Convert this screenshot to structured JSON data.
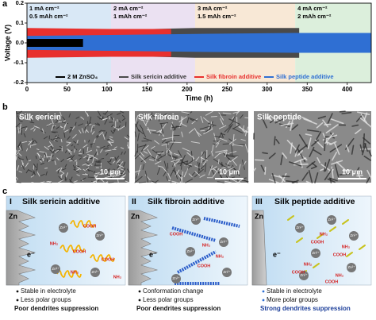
{
  "chart_data": {
    "type": "band",
    "panel_label": "a",
    "x_label": "Time (h)",
    "y_label": "Voltage (V)",
    "xlim": [
      0,
      430
    ],
    "xticks": [
      0,
      50,
      100,
      150,
      200,
      250,
      300,
      350,
      400
    ],
    "ylim": [
      -0.2,
      0.2
    ],
    "yticks": [
      0.2,
      0.1,
      {
        "value": 0,
        "label": "0.0"
      },
      -0.1,
      -0.2
    ],
    "regions": [
      {
        "x": [
          0,
          105
        ],
        "color": "#d9e8f6",
        "lines": [
          "1 mA cm⁻²",
          "0.5 mAh cm⁻²"
        ]
      },
      {
        "x": [
          105,
          210
        ],
        "color": "#ebe1f2",
        "lines": [
          "2 mA cm⁻²",
          "1 mAh cm⁻²"
        ]
      },
      {
        "x": [
          210,
          335
        ],
        "color": "#f8e8d6",
        "lines": [
          "3 mA cm⁻²",
          "1.5 mAh cm⁻²"
        ]
      },
      {
        "x": [
          335,
          430
        ],
        "color": "#dcefdc",
        "lines": [
          "4 mA cm⁻²",
          "2 mAh cm⁻²"
        ]
      }
    ],
    "series": [
      {
        "name": "Silk sericin additive",
        "color": "#4a4a4a",
        "x": [
          0,
          105,
          210,
          340
        ],
        "values": [
          0.06,
          0.065,
          0.075,
          0.075
        ]
      },
      {
        "name": "Silk fibroin additive",
        "color": "#e8302e",
        "x": [
          0,
          105,
          180
        ],
        "values": [
          0.075,
          0.07,
          0.07
        ]
      },
      {
        "name": "Silk peptide additive",
        "color": "#2f6fd3",
        "x": [
          0,
          105,
          210,
          335,
          430
        ],
        "values": [
          0.035,
          0.04,
          0.045,
          0.05,
          0.05
        ]
      },
      {
        "name": "2 M ZnSO₄",
        "color": "#000000",
        "x": [
          0,
          70
        ],
        "values": [
          0.02,
          0.02
        ]
      }
    ]
  },
  "panel_b": {
    "label": "b",
    "images": [
      {
        "title": "Silk sericin",
        "scale": "10 μm"
      },
      {
        "title": "Silk fibroin",
        "scale": "10 μm"
      },
      {
        "title": "Silk peptide",
        "scale": "10 μm"
      }
    ]
  },
  "panel_c": {
    "label": "c",
    "panels": [
      {
        "numeral": "I",
        "title": "Silk sericin additive",
        "electrode": "Zn",
        "electron": "e⁻",
        "ions": [
          "Zn²⁺",
          "Zn²⁺",
          "Zn²⁺",
          "Zn²⁺"
        ],
        "groups": [
          "COOH",
          "COOH",
          "NH₂",
          "COOH",
          "NH₂",
          "NH₂"
        ],
        "notes": [
          "Stable in electrolyte",
          "Less polar groups",
          "Poor dendrites suppression"
        ]
      },
      {
        "numeral": "II",
        "title": "Silk fibroin additive",
        "electrode": "Zn",
        "electron": "e⁻",
        "ions": [
          "Zn²⁺",
          "Zn²⁺",
          "Zn²⁺",
          "Zn²⁺",
          "Zn²⁺"
        ],
        "groups": [
          "COOH",
          "NH₂",
          "COOH",
          "NH₂"
        ],
        "notes": [
          "Conformation change",
          "Less polar groups",
          "Poor dendrites suppression"
        ]
      },
      {
        "numeral": "III",
        "title": "Silk peptide additive",
        "electrode": "Zn",
        "electron": "e⁻",
        "ions": [
          "Zn²⁺",
          "Zn²⁺",
          "Zn²⁺",
          "Zn²⁺",
          "Zn²⁺",
          "Zn²⁺"
        ],
        "groups": [
          "NH₂",
          "COOH",
          "NH₂",
          "COOH",
          "NH₂",
          "COOH",
          "NH₂",
          "COOH"
        ],
        "notes": [
          "Stable in electrolyte",
          "More polar groups",
          "Strong dendrites suppression"
        ]
      }
    ]
  }
}
